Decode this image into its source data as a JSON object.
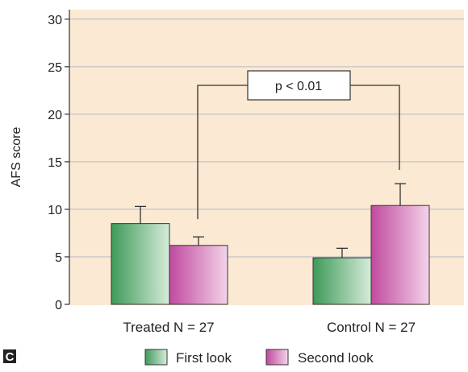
{
  "chart_data": {
    "type": "bar",
    "panel_letter": "C",
    "ylabel": "AFS score",
    "ylim": [
      0,
      31
    ],
    "yticks": [
      0,
      5,
      10,
      15,
      20,
      25,
      30
    ],
    "grid": true,
    "legend_position": "bottom",
    "categories": [
      "Treated N = 27",
      "Control N = 27"
    ],
    "series": [
      {
        "name": "First look",
        "values": [
          8.5,
          4.9
        ],
        "errors": [
          1.8,
          1.0
        ]
      },
      {
        "name": "Second look",
        "values": [
          6.2,
          10.4
        ],
        "errors": [
          0.9,
          2.3
        ]
      }
    ],
    "annotation": {
      "label": "p < 0.01"
    },
    "colors": {
      "plot_background": "#fbe9d3",
      "grid": "#b8b8c8",
      "first_look_dark": "#3f9a5a",
      "first_look_light": "#d6ecd9",
      "second_look_dark": "#c04a9e",
      "second_look_light": "#f3d3ea",
      "panel_letter_bg": "#222222"
    }
  }
}
